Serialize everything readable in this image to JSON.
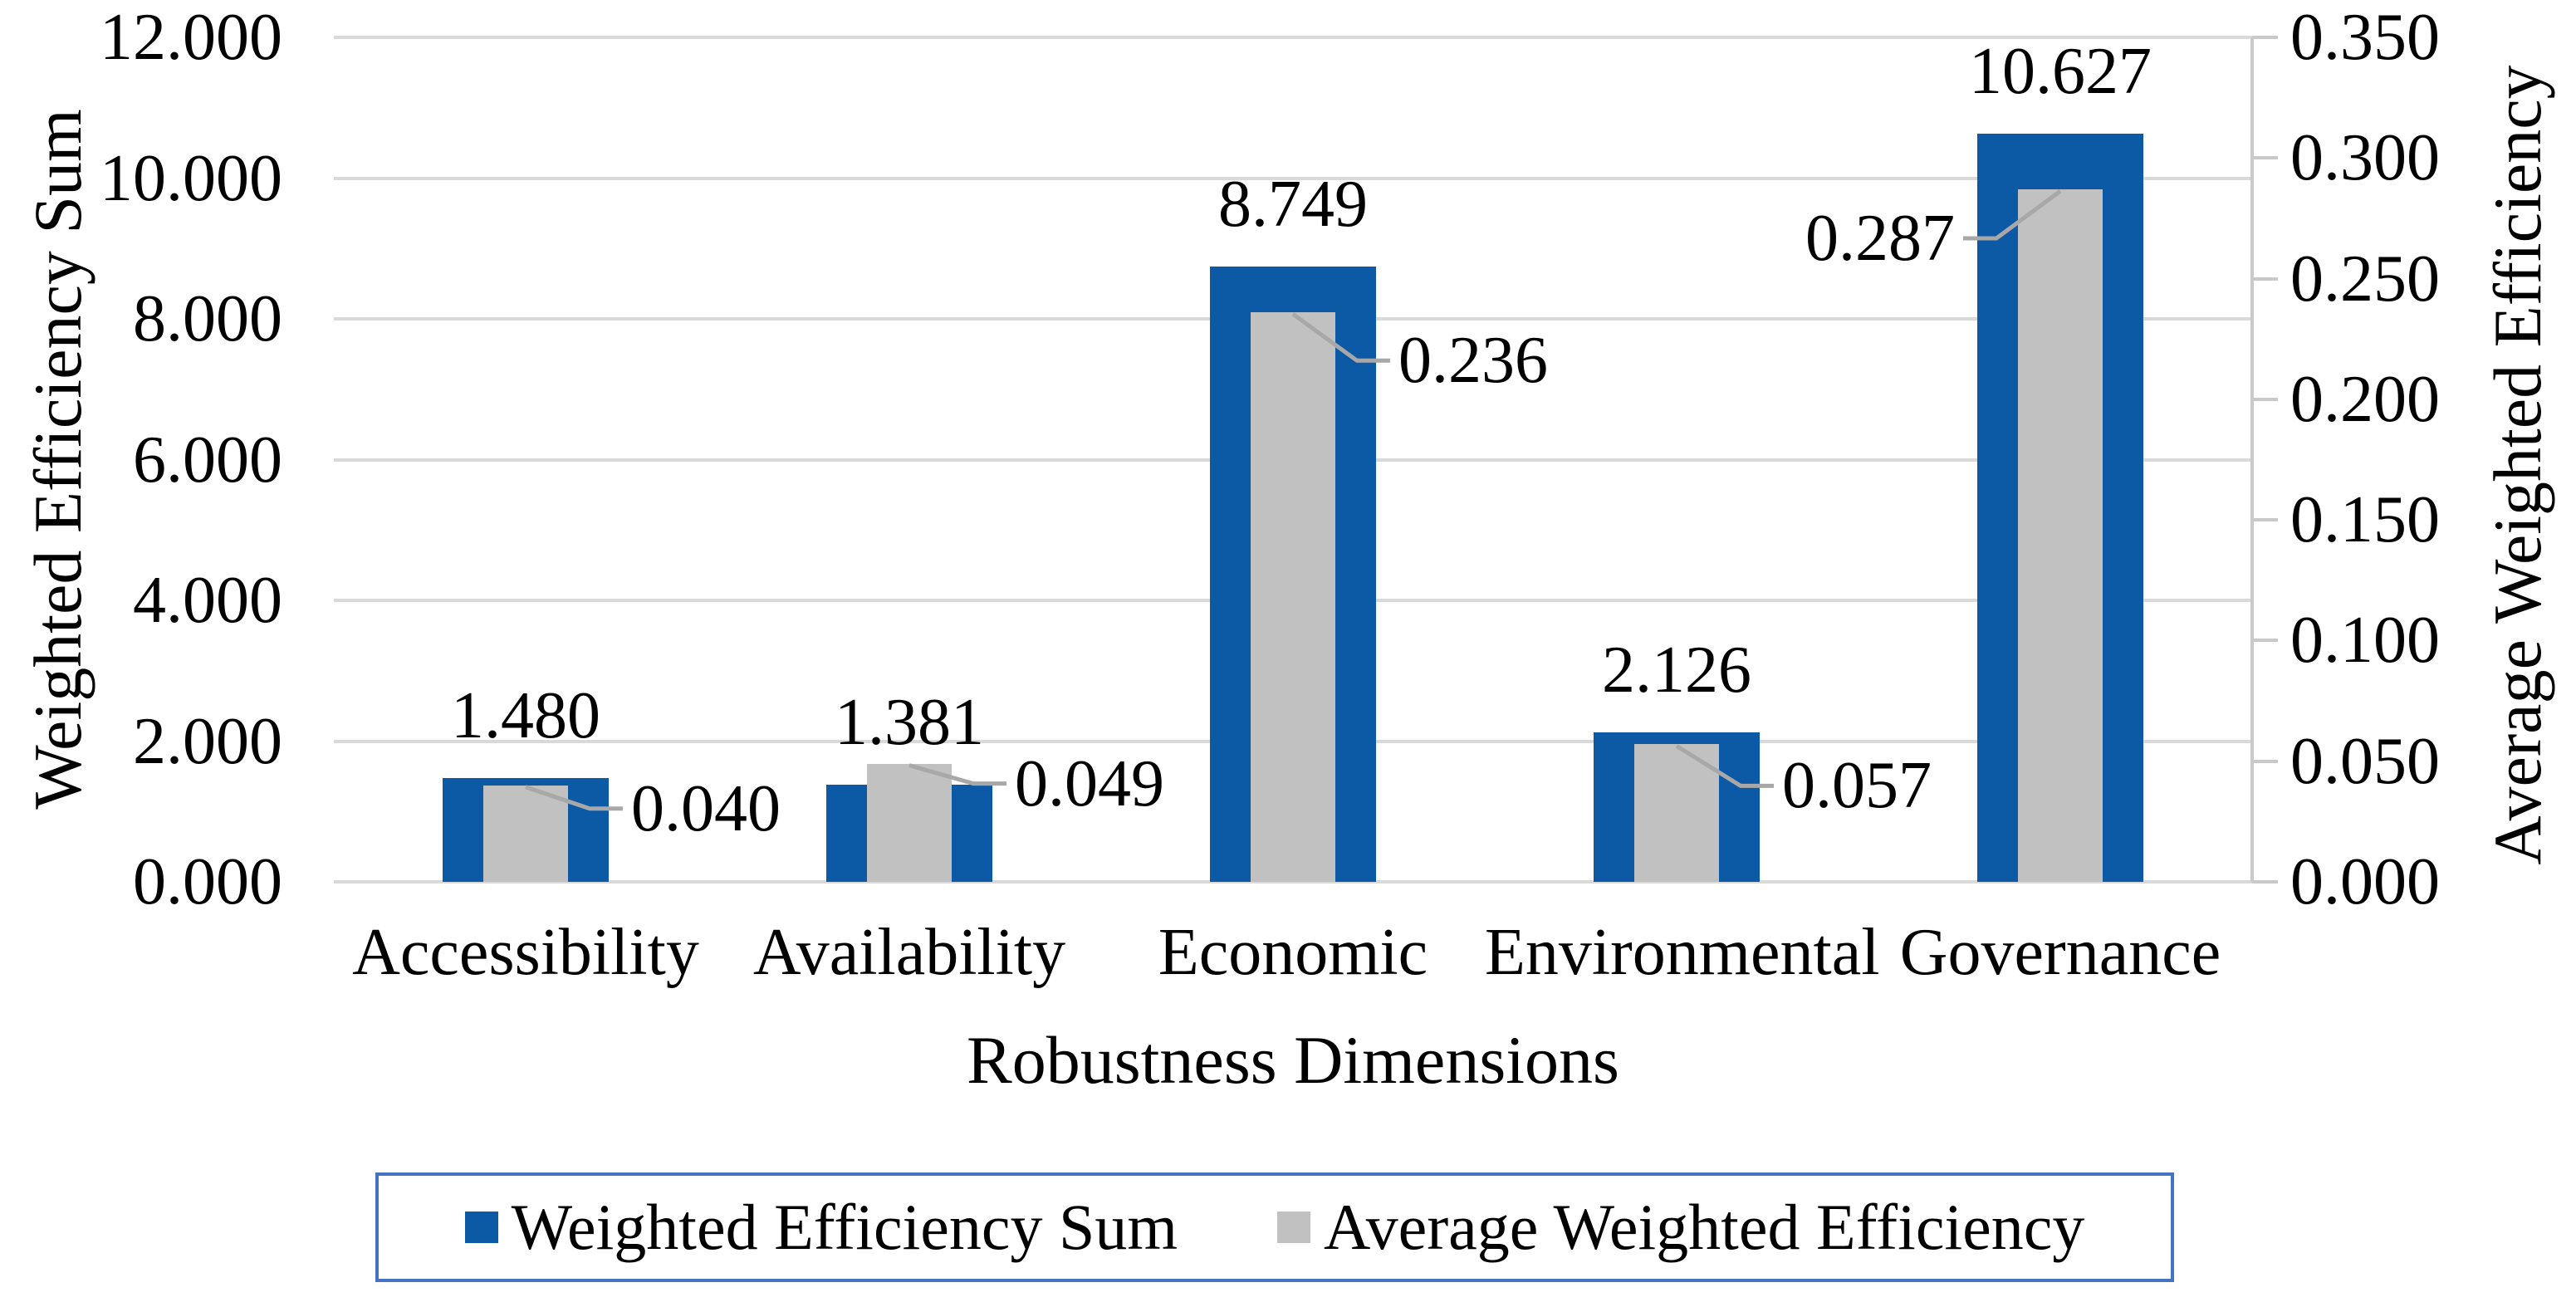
{
  "chart_data": {
    "type": "bar",
    "title": "",
    "categories": [
      "Accessibility",
      "Availability",
      "Economic",
      "Environmental",
      "Governance"
    ],
    "series": [
      {
        "name": "Weighted Efficiency Sum",
        "axis": "left",
        "color": "#0C59A6",
        "values": [
          1.48,
          1.381,
          8.749,
          2.126,
          10.627
        ],
        "data_labels": [
          "1.480",
          "1.381",
          "8.749",
          "2.126",
          "10.627"
        ]
      },
      {
        "name": "Average Weighted Efficiency",
        "axis": "right",
        "color": "#C1C1C1",
        "values": [
          0.04,
          0.049,
          0.236,
          0.057,
          0.287
        ],
        "data_labels": [
          "0.040",
          "0.049",
          "0.236",
          "0.057",
          "0.287"
        ]
      }
    ],
    "xlabel": "Robustness Dimensions",
    "ylabel_left": "Weighted Efficiency Sum",
    "ylabel_right": "Average Weighted Efficiency",
    "ylim_left": [
      0,
      12
    ],
    "ylim_right": [
      0,
      0.35
    ],
    "left_tick_labels": [
      "12.000",
      "10.000",
      "8.000",
      "6.000",
      "4.000",
      "2.000",
      "0.000"
    ],
    "right_tick_labels": [
      "0.350",
      "0.300",
      "0.250",
      "0.200",
      "0.150",
      "0.100",
      "0.050",
      "0.000"
    ],
    "grid": true,
    "legend_position": "bottom",
    "bar_style": "overlapped"
  },
  "legend": {
    "items": [
      {
        "label": "Weighted Efficiency Sum",
        "color": "#0C59A6"
      },
      {
        "label": "Average Weighted Efficiency",
        "color": "#C1C1C1"
      }
    ]
  },
  "colors": {
    "background": "#FFFFFF",
    "text": "#000000",
    "gridline": "#D9D9D9",
    "axis_line": "#C9C9C9",
    "leader_line": "#A8A8A8",
    "legend_border": "#4472C4"
  }
}
